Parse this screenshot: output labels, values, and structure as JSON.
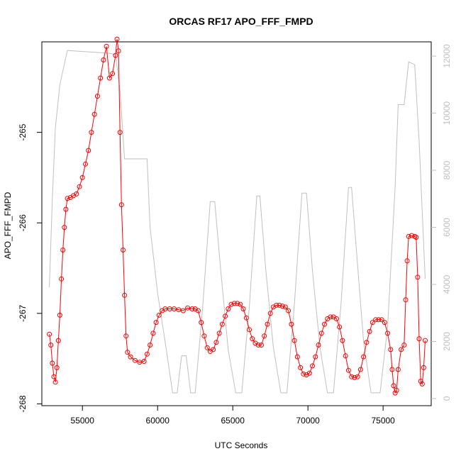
{
  "chart_data": {
    "type": "line",
    "title": "ORCAS RF17 APO_FFF_FMPD",
    "xlabel": "UTC Seconds",
    "ylabel": "APO_FFF_FMPD",
    "xlim": [
      52300,
      78200
    ],
    "ylim": [
      -268.02,
      -264.0
    ],
    "y2lim": [
      -250,
      12500
    ],
    "x_ticks": [
      55000,
      60000,
      65000,
      70000,
      75000
    ],
    "x_tick_labels": [
      "55000",
      "60000",
      "65000",
      "70000",
      "75000"
    ],
    "y_ticks": [
      -268,
      -267,
      -266,
      -265
    ],
    "y_tick_labels": [
      "-268",
      "-267",
      "-266",
      "-265"
    ],
    "y2_ticks": [
      0,
      2000,
      4000,
      6000,
      8000,
      10000,
      12000
    ],
    "y2_tick_labels": [
      "0",
      "2000",
      "4000",
      "6000",
      "8000",
      "10000",
      "12000"
    ],
    "colors": {
      "primary": "#ff0000",
      "secondary": "#bfbfbf"
    },
    "series": [
      {
        "axis": "left",
        "style": "line+open-circles",
        "color": "#ff0000",
        "points": [
          [
            52800,
            -267.23
          ],
          [
            52900,
            -267.35
          ],
          [
            53000,
            -267.55
          ],
          [
            53100,
            -267.7
          ],
          [
            53200,
            -267.76
          ],
          [
            53300,
            -267.6
          ],
          [
            53400,
            -267.3
          ],
          [
            53500,
            -267.02
          ],
          [
            53600,
            -266.62
          ],
          [
            53700,
            -266.3
          ],
          [
            53800,
            -266.05
          ],
          [
            53900,
            -265.85
          ],
          [
            54000,
            -265.73
          ],
          [
            54200,
            -265.72
          ],
          [
            54400,
            -265.7
          ],
          [
            54600,
            -265.68
          ],
          [
            54800,
            -265.6
          ],
          [
            55000,
            -265.5
          ],
          [
            55200,
            -265.35
          ],
          [
            55400,
            -265.2
          ],
          [
            55600,
            -265.0
          ],
          [
            55800,
            -264.8
          ],
          [
            56000,
            -264.6
          ],
          [
            56200,
            -264.4
          ],
          [
            56400,
            -264.2
          ],
          [
            56600,
            -264.05
          ],
          [
            56800,
            -264.4
          ],
          [
            57000,
            -264.35
          ],
          [
            57200,
            -264.15
          ],
          [
            57300,
            -263.97
          ],
          [
            57400,
            -264.1
          ],
          [
            57500,
            -265.0
          ],
          [
            57600,
            -265.8
          ],
          [
            57700,
            -266.3
          ],
          [
            57800,
            -266.8
          ],
          [
            57900,
            -267.25
          ],
          [
            58000,
            -267.43
          ],
          [
            58200,
            -267.48
          ],
          [
            58500,
            -267.52
          ],
          [
            58800,
            -267.54
          ],
          [
            59100,
            -267.53
          ],
          [
            59300,
            -267.45
          ],
          [
            59500,
            -267.35
          ],
          [
            59700,
            -267.22
          ],
          [
            59900,
            -267.1
          ],
          [
            60100,
            -267.02
          ],
          [
            60300,
            -266.97
          ],
          [
            60500,
            -266.95
          ],
          [
            60800,
            -266.95
          ],
          [
            61100,
            -266.95
          ],
          [
            61400,
            -266.96
          ],
          [
            61700,
            -266.97
          ],
          [
            62000,
            -266.94
          ],
          [
            62300,
            -266.95
          ],
          [
            62500,
            -266.95
          ],
          [
            62700,
            -266.97
          ],
          [
            62900,
            -267.1
          ],
          [
            63100,
            -267.25
          ],
          [
            63300,
            -267.38
          ],
          [
            63500,
            -267.42
          ],
          [
            63700,
            -267.4
          ],
          [
            63900,
            -267.32
          ],
          [
            64100,
            -267.22
          ],
          [
            64300,
            -267.12
          ],
          [
            64500,
            -267.03
          ],
          [
            64700,
            -266.95
          ],
          [
            64900,
            -266.9
          ],
          [
            65100,
            -266.89
          ],
          [
            65300,
            -266.89
          ],
          [
            65500,
            -266.9
          ],
          [
            65700,
            -266.95
          ],
          [
            65900,
            -267.05
          ],
          [
            66100,
            -267.18
          ],
          [
            66300,
            -267.28
          ],
          [
            66500,
            -267.33
          ],
          [
            66700,
            -267.35
          ],
          [
            66900,
            -267.35
          ],
          [
            67100,
            -267.25
          ],
          [
            67300,
            -267.12
          ],
          [
            67500,
            -267.0
          ],
          [
            67700,
            -266.93
          ],
          [
            67900,
            -266.91
          ],
          [
            68100,
            -266.91
          ],
          [
            68300,
            -266.92
          ],
          [
            68500,
            -266.93
          ],
          [
            68700,
            -266.97
          ],
          [
            68900,
            -267.12
          ],
          [
            69100,
            -267.3
          ],
          [
            69300,
            -267.48
          ],
          [
            69500,
            -267.6
          ],
          [
            69700,
            -267.67
          ],
          [
            69900,
            -267.68
          ],
          [
            70100,
            -267.66
          ],
          [
            70300,
            -267.58
          ],
          [
            70500,
            -267.48
          ],
          [
            70700,
            -267.35
          ],
          [
            70900,
            -267.22
          ],
          [
            71100,
            -267.12
          ],
          [
            71300,
            -267.06
          ],
          [
            71500,
            -267.04
          ],
          [
            71700,
            -267.04
          ],
          [
            71900,
            -267.06
          ],
          [
            72100,
            -267.15
          ],
          [
            72300,
            -267.3
          ],
          [
            72500,
            -267.47
          ],
          [
            72700,
            -267.63
          ],
          [
            72900,
            -267.7
          ],
          [
            73100,
            -267.71
          ],
          [
            73300,
            -267.7
          ],
          [
            73500,
            -267.62
          ],
          [
            73700,
            -267.48
          ],
          [
            73900,
            -267.32
          ],
          [
            74100,
            -267.2
          ],
          [
            74300,
            -267.1
          ],
          [
            74500,
            -267.07
          ],
          [
            74700,
            -267.07
          ],
          [
            74900,
            -267.07
          ],
          [
            75100,
            -267.1
          ],
          [
            75300,
            -267.22
          ],
          [
            75500,
            -267.4
          ],
          [
            75600,
            -267.62
          ],
          [
            75700,
            -267.8
          ],
          [
            75800,
            -267.88
          ],
          [
            75900,
            -267.85
          ],
          [
            76000,
            -267.62
          ],
          [
            76200,
            -267.4
          ],
          [
            76400,
            -267.35
          ],
          [
            76500,
            -266.85
          ],
          [
            76600,
            -266.42
          ],
          [
            76700,
            -266.15
          ],
          [
            76900,
            -266.14
          ],
          [
            77100,
            -266.15
          ],
          [
            77200,
            -266.16
          ],
          [
            77300,
            -266.6
          ],
          [
            77400,
            -267.28
          ],
          [
            77500,
            -267.75
          ],
          [
            77600,
            -267.78
          ],
          [
            77700,
            -267.6
          ],
          [
            77800,
            -267.3
          ]
        ]
      },
      {
        "axis": "right",
        "style": "line",
        "color": "#bfbfbf",
        "points": [
          [
            52800,
            3900
          ],
          [
            53000,
            7000
          ],
          [
            53200,
            9500
          ],
          [
            53500,
            11000
          ],
          [
            54000,
            12200
          ],
          [
            56800,
            12100
          ],
          [
            57200,
            12050
          ],
          [
            57500,
            10800
          ],
          [
            57800,
            8400
          ],
          [
            59300,
            8400
          ],
          [
            59500,
            6000
          ],
          [
            60000,
            3700
          ],
          [
            60500,
            2000
          ],
          [
            61000,
            200
          ],
          [
            61300,
            200
          ],
          [
            61600,
            1500
          ],
          [
            61900,
            1500
          ],
          [
            62200,
            200
          ],
          [
            62500,
            200
          ],
          [
            63000,
            3200
          ],
          [
            63500,
            6900
          ],
          [
            63800,
            6900
          ],
          [
            64200,
            4500
          ],
          [
            64700,
            1700
          ],
          [
            65200,
            200
          ],
          [
            65600,
            200
          ],
          [
            66100,
            3200
          ],
          [
            66600,
            7100
          ],
          [
            66800,
            7100
          ],
          [
            67200,
            4500
          ],
          [
            67700,
            1800
          ],
          [
            68200,
            200
          ],
          [
            68600,
            200
          ],
          [
            69100,
            3300
          ],
          [
            69600,
            7200
          ],
          [
            69900,
            7200
          ],
          [
            70300,
            4500
          ],
          [
            70800,
            1800
          ],
          [
            71300,
            200
          ],
          [
            71700,
            200
          ],
          [
            72200,
            3300
          ],
          [
            72700,
            7400
          ],
          [
            72900,
            7400
          ],
          [
            73300,
            4700
          ],
          [
            73700,
            2000
          ],
          [
            74200,
            200
          ],
          [
            74800,
            200
          ],
          [
            75300,
            2500
          ],
          [
            75800,
            7400
          ],
          [
            76000,
            10300
          ],
          [
            76400,
            10300
          ],
          [
            76700,
            11800
          ],
          [
            77100,
            11700
          ],
          [
            77400,
            9000
          ],
          [
            77800,
            4200
          ]
        ]
      }
    ]
  }
}
